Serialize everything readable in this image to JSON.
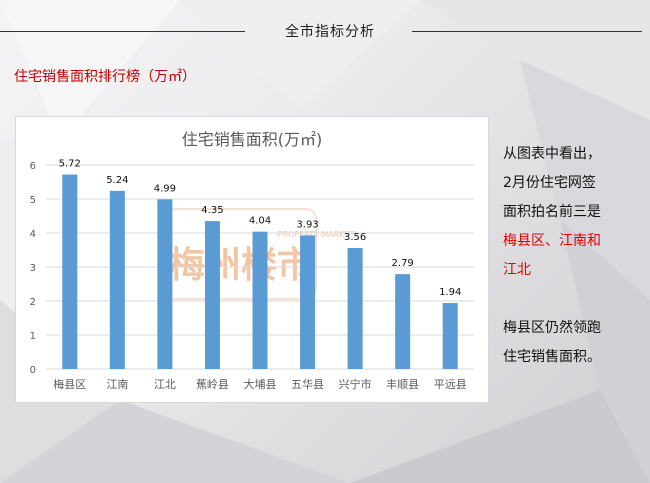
{
  "header": {
    "title": "全市指标分析"
  },
  "section": {
    "title": "住宅销售面积排行榜（万㎡）"
  },
  "chart_data": {
    "type": "bar",
    "title": "住宅销售面积(万㎡)",
    "categories": [
      "梅县区",
      "江南",
      "江北",
      "蕉岭县",
      "大埔县",
      "五华县",
      "兴宁市",
      "丰顺县",
      "平远县"
    ],
    "values": [
      5.72,
      5.24,
      4.99,
      4.35,
      4.04,
      3.93,
      3.56,
      2.79,
      1.94
    ],
    "value_labels": [
      "5.72",
      "5.24",
      "4.99",
      "4.35",
      "4.04",
      "3.93",
      "3.56",
      "2.79",
      "1.94"
    ],
    "ylim": [
      0,
      6
    ],
    "yticks": [
      "0",
      "1",
      "2",
      "3",
      "4",
      "5",
      "6"
    ],
    "grid": true,
    "bar_color": "#5b9bd5"
  },
  "watermark": {
    "text": "梅州楼市",
    "sub_text": "PROPERTY MARKET"
  },
  "sidebar_text": {
    "p1_lines": [
      "从图表中看出，",
      "2月份住宅网签",
      "面积拍名前三是"
    ],
    "p1_highlight_lines": [
      "梅县区、江南和",
      "江北"
    ],
    "p2_lines": [
      "梅县区仍然领跑",
      "住宅销售面积。"
    ]
  },
  "colors": {
    "accent_red": "#e00000",
    "section_red": "#c00000"
  }
}
